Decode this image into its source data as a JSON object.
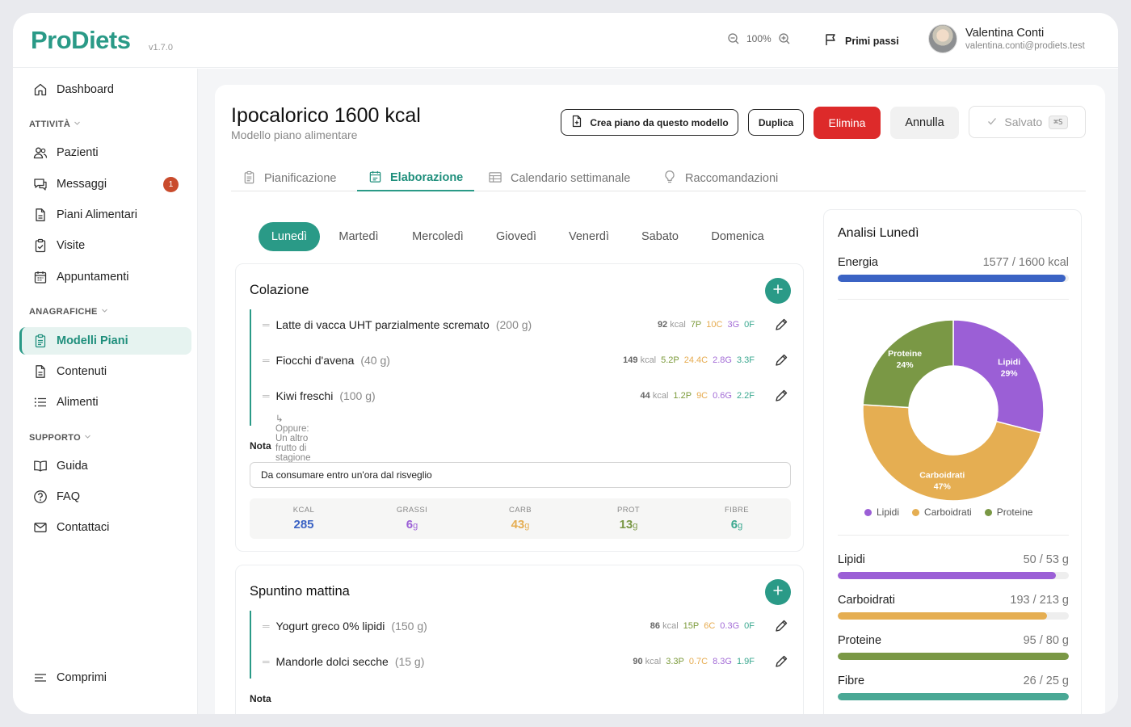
{
  "app": {
    "name": "ProDiets",
    "version": "v1.7.0"
  },
  "topbar": {
    "zoom": "100%",
    "help_label": "Primi passi",
    "user": {
      "name": "Valentina Conti",
      "email": "valentina.conti@prodiets.test"
    }
  },
  "sidebar": {
    "dashboard": "Dashboard",
    "sections": {
      "attivita": "ATTIVITÀ",
      "anagrafiche": "ANAGRAFICHE",
      "supporto": "SUPPORTO"
    },
    "items": {
      "pazienti": "Pazienti",
      "messaggi": "Messaggi",
      "messaggi_badge": "1",
      "piani": "Piani Alimentari",
      "visite": "Visite",
      "appuntamenti": "Appuntamenti",
      "modelli": "Modelli Piani",
      "contenuti": "Contenuti",
      "alimenti": "Alimenti",
      "guida": "Guida",
      "faq": "FAQ",
      "contattaci": "Contattaci"
    },
    "collapse": "Comprimi"
  },
  "header": {
    "title": "Ipocalorico 1600 kcal",
    "subtitle": "Modello piano alimentare",
    "actions": {
      "create": "Crea piano da questo modello",
      "duplicate": "Duplica",
      "delete": "Elimina",
      "cancel": "Annulla",
      "saved": "Salvato",
      "saved_shortcut": "⌘S"
    }
  },
  "tabs": [
    "Pianificazione",
    "Elaborazione",
    "Calendario settimanale",
    "Raccomandazioni"
  ],
  "days": [
    "Lunedì",
    "Martedì",
    "Mercoledì",
    "Giovedì",
    "Venerdì",
    "Sabato",
    "Domenica"
  ],
  "meals": {
    "colazione": {
      "title": "Colazione",
      "foods": [
        {
          "name": "Latte di vacca UHT parzialmente scremato",
          "qty": "(200 g)",
          "kcal": "92",
          "p": "7P",
          "c": "10C",
          "g": "3G",
          "f": "0F"
        },
        {
          "name": "Fiocchi d'avena",
          "qty": "(40 g)",
          "kcal": "149",
          "p": "5.2P",
          "c": "24.4C",
          "g": "2.8G",
          "f": "3.3F"
        },
        {
          "name": "Kiwi freschi",
          "qty": "(100 g)",
          "kcal": "44",
          "p": "1.2P",
          "c": "9C",
          "g": "0.6G",
          "f": "2.2F"
        }
      ],
      "alt": "↳ Oppure: Un altro frutto di stagione",
      "nota_label": "Nota",
      "nota": "Da consumare entro un'ora dal risveglio",
      "totals": {
        "kcal_label": "KCAL",
        "kcal": "285",
        "grassi_label": "GRASSI",
        "grassi": "6",
        "carb_label": "CARB",
        "carb": "43",
        "prot_label": "PROT",
        "prot": "13",
        "fibre_label": "FIBRE",
        "fibre": "6",
        "unit": "g"
      }
    },
    "spuntino": {
      "title": "Spuntino mattina",
      "foods": [
        {
          "name": "Yogurt greco 0% lipidi",
          "qty": "(150 g)",
          "kcal": "86",
          "p": "15P",
          "c": "6C",
          "g": "0.3G",
          "f": "0F"
        },
        {
          "name": "Mandorle dolci secche",
          "qty": "(15 g)",
          "kcal": "90",
          "p": "3.3P",
          "c": "0.7C",
          "g": "8.3G",
          "f": "1.9F"
        }
      ],
      "nota_label": "Nota"
    }
  },
  "kcal_unit": "kcal",
  "analysis": {
    "title": "Analisi Lunedì",
    "energy": {
      "label": "Energia",
      "value": "1577 / 1600 kcal",
      "ratio": 0.986,
      "color": "#3b63c4"
    },
    "chart_data": {
      "type": "pie",
      "slices": [
        {
          "label": "Lipidi",
          "value": 29,
          "text": "29%",
          "color": "#9b5fd6"
        },
        {
          "label": "Carboidrati",
          "value": 47,
          "text": "47%",
          "color": "#e5ae52"
        },
        {
          "label": "Proteine",
          "value": 24,
          "text": "24%",
          "color": "#7a9845"
        }
      ]
    },
    "macros": [
      {
        "label": "Lipidi",
        "value": "50 / 53 g",
        "ratio": 0.943,
        "color": "#9b5fd6"
      },
      {
        "label": "Carboidrati",
        "value": "193 / 213 g",
        "ratio": 0.906,
        "color": "#e5ae52"
      },
      {
        "label": "Proteine",
        "value": "95 / 80 g",
        "ratio": 1.0,
        "color": "#7a9845"
      },
      {
        "label": "Fibre",
        "value": "26 / 25 g",
        "ratio": 1.0,
        "color": "#4aa895"
      }
    ]
  }
}
